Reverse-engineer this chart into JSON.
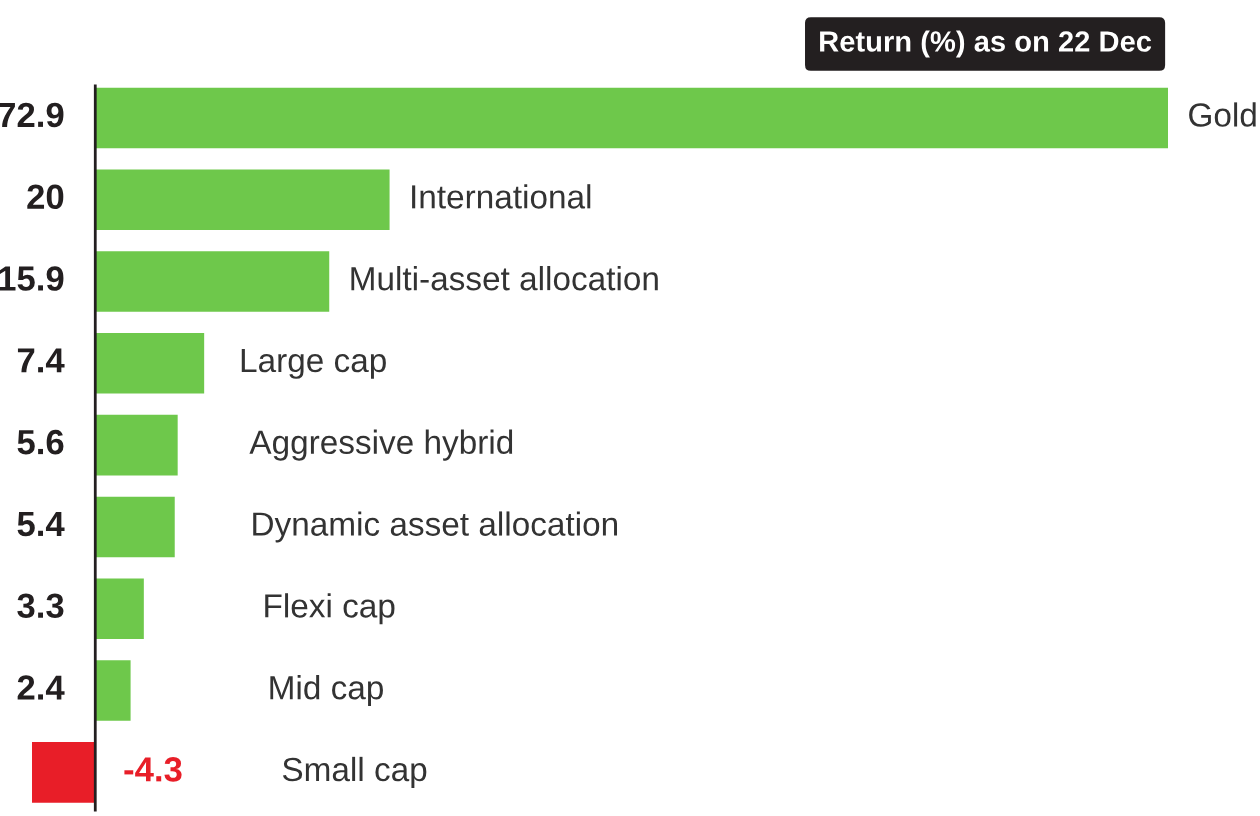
{
  "chart_data": {
    "type": "bar",
    "orientation": "horizontal",
    "title": "Return (%) as on 22 Dec",
    "categories": [
      "Gold",
      "International",
      "Multi-asset allocation",
      "Large cap",
      "Aggressive hybrid",
      "Dynamic asset allocation",
      "Flexi cap",
      "Mid cap",
      "Small cap"
    ],
    "values": [
      72.9,
      20,
      15.9,
      7.4,
      5.6,
      5.4,
      3.3,
      2.4,
      -4.3
    ],
    "colors": [
      "#6ec84b",
      "#6ec84b",
      "#6ec84b",
      "#6ec84b",
      "#6ec84b",
      "#6ec84b",
      "#6ec84b",
      "#6ec84b",
      "#e81e28"
    ],
    "data_labels": true
  }
}
